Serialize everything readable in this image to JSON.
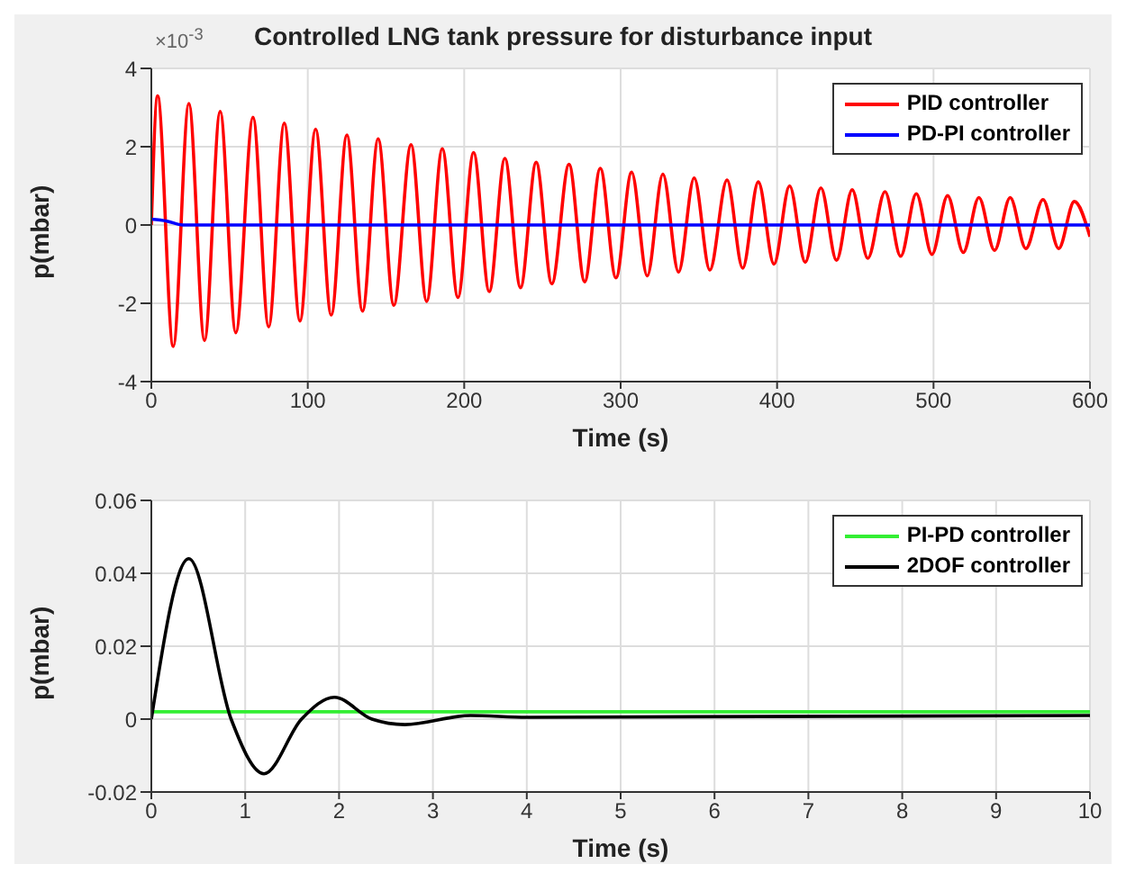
{
  "chart_data": [
    {
      "type": "line",
      "title": "Controlled LNG tank pressure for disturbance input",
      "xlabel": "Time (s)",
      "ylabel": "p(mbar)",
      "annotations": [
        "×10$^{-3}$"
      ],
      "xlim": [
        0,
        600
      ],
      "xticks": [
        0,
        100,
        200,
        300,
        400,
        500,
        600
      ],
      "ylim": [
        -4,
        4
      ],
      "yticks": [
        -4,
        -2,
        0,
        2,
        4
      ],
      "grid": true,
      "legend": "top right",
      "series": [
        {
          "name": "PID controller",
          "color": "#ff0000",
          "x": [
            0,
            4,
            14,
            24,
            34,
            44,
            54,
            65,
            75,
            85,
            95,
            105,
            115,
            125,
            135,
            145,
            155,
            166,
            176,
            186,
            196,
            206,
            216,
            226,
            236,
            246,
            256,
            267,
            277,
            287,
            297,
            307,
            317,
            327,
            337,
            347,
            357,
            368,
            378,
            388,
            398,
            408,
            418,
            428,
            438,
            448,
            458,
            469,
            479,
            489,
            499,
            509,
            519,
            529,
            539,
            549,
            559,
            570,
            580,
            590,
            600
          ],
          "values": [
            0,
            3.3,
            -3.1,
            3.1,
            -2.95,
            2.9,
            -2.75,
            2.75,
            -2.6,
            2.6,
            -2.45,
            2.45,
            -2.3,
            2.3,
            -2.2,
            2.2,
            -2.05,
            2.05,
            -1.95,
            1.95,
            -1.85,
            1.85,
            -1.7,
            1.7,
            -1.6,
            1.6,
            -1.5,
            1.55,
            -1.45,
            1.45,
            -1.35,
            1.35,
            -1.3,
            1.3,
            -1.2,
            1.2,
            -1.15,
            1.15,
            -1.1,
            1.1,
            -1.0,
            1.0,
            -0.95,
            0.95,
            -0.9,
            0.9,
            -0.85,
            0.85,
            -0.8,
            0.8,
            -0.75,
            0.75,
            -0.7,
            0.7,
            -0.65,
            0.7,
            -0.6,
            0.65,
            -0.6,
            0.6,
            -0.3
          ]
        },
        {
          "name": "PD-PI controller",
          "color": "#0000ff",
          "x": [
            0,
            10,
            20,
            600
          ],
          "values": [
            0.15,
            0.1,
            0,
            0
          ]
        }
      ]
    },
    {
      "type": "line",
      "xlabel": "Time (s)",
      "ylabel": "p(mbar)",
      "xlim": [
        0,
        10
      ],
      "xticks": [
        0,
        1,
        2,
        3,
        4,
        5,
        6,
        7,
        8,
        9,
        10
      ],
      "ylim": [
        -0.02,
        0.06
      ],
      "yticks": [
        -0.02,
        0,
        0.02,
        0.04,
        0.06
      ],
      "grid": true,
      "legend": "top right",
      "series": [
        {
          "name": "PI-PD controller",
          "color": "#33ee33",
          "x": [
            0,
            10
          ],
          "values": [
            0.002,
            0.002
          ]
        },
        {
          "name": "2DOF controller",
          "color": "#000000",
          "x": [
            0,
            0.4,
            0.85,
            1.2,
            1.6,
            1.95,
            2.35,
            2.7,
            3.4,
            4,
            10
          ],
          "values": [
            0,
            0.044,
            0,
            -0.015,
            0,
            0.006,
            0,
            -0.0015,
            0.001,
            0.0005,
            0.001
          ]
        }
      ]
    }
  ]
}
